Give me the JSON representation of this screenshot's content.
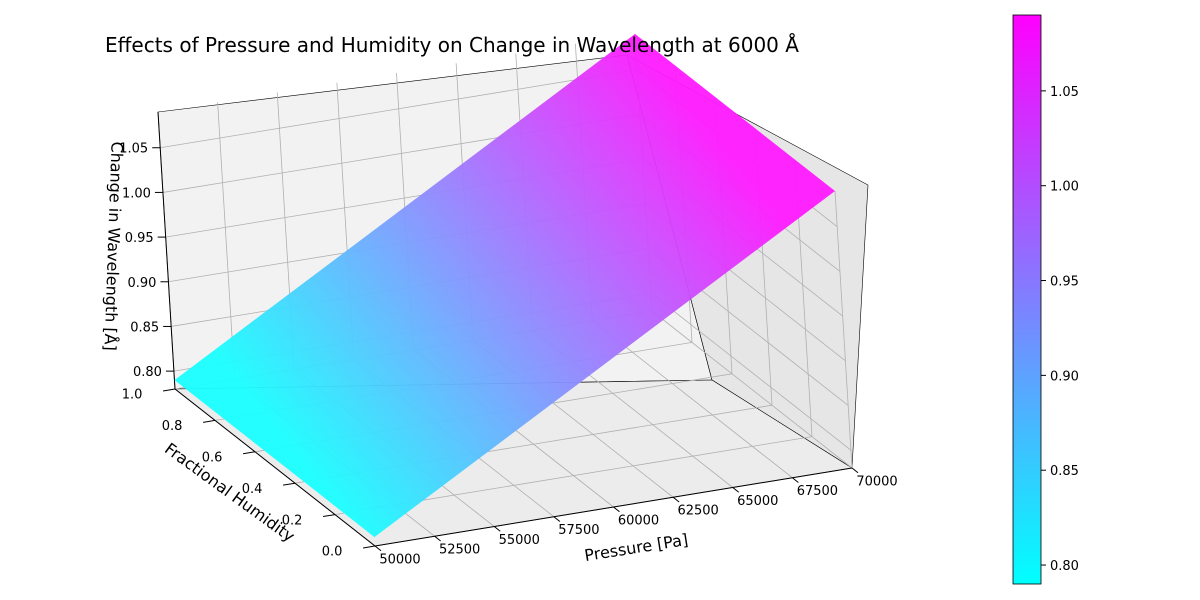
{
  "chart_data": {
    "type": "surface3d",
    "title": "Effects of Pressure and Humidity on Change in Wavelength at 6000 Å",
    "xlabel": "Pressure [Pa]",
    "ylabel": "Fractional Humidity",
    "zlabel": "Change in Wavelength [Å]",
    "x_ticks": [
      "50000",
      "52500",
      "55000",
      "57500",
      "60000",
      "62500",
      "65000",
      "67500",
      "70000"
    ],
    "y_ticks": [
      "0.0",
      "0.2",
      "0.4",
      "0.6",
      "0.8",
      "1.0"
    ],
    "z_ticks": [
      "0.80",
      "0.85",
      "0.90",
      "0.95",
      "1.00",
      "1.05"
    ],
    "xlim": [
      50000,
      70000
    ],
    "ylim": [
      0.0,
      1.0
    ],
    "zlim": [
      0.78,
      1.09
    ],
    "surface_corners": [
      {
        "x": 50000,
        "y": 0.0,
        "z": 0.79
      },
      {
        "x": 50000,
        "y": 1.0,
        "z": 0.79
      },
      {
        "x": 70000,
        "y": 1.0,
        "z": 1.09
      },
      {
        "x": 70000,
        "y": 0.0,
        "z": 1.09
      }
    ],
    "colormap": "cool",
    "colormap_colors": [
      "#00ffff",
      "#ff00ff"
    ],
    "colorbar": {
      "min": 0.79,
      "max": 1.09,
      "ticks": [
        "0.80",
        "0.85",
        "0.90",
        "0.95",
        "1.00",
        "1.05"
      ]
    },
    "grid": true
  }
}
